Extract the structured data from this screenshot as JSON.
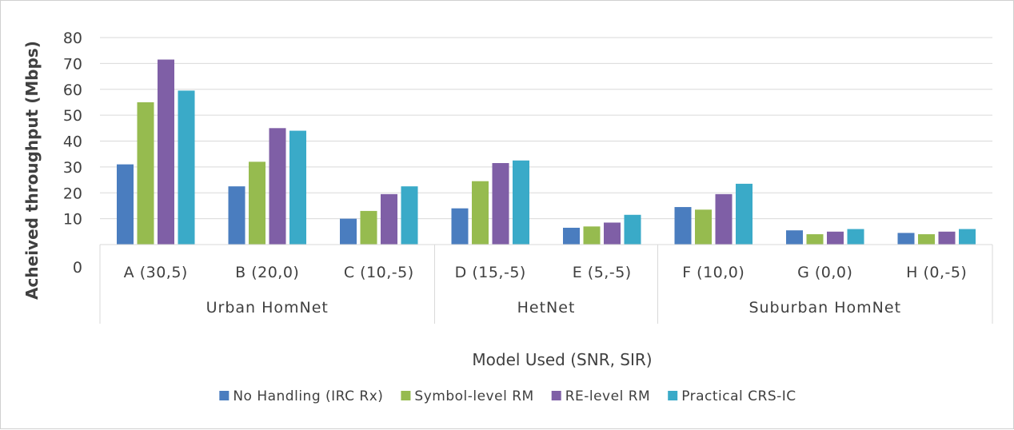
{
  "chart_data": {
    "type": "bar",
    "title": "",
    "xlabel": "Model Used (SNR, SIR)",
    "ylabel": "Acheived throughput (Mbps)",
    "ylim": [
      0,
      80
    ],
    "yticks": [
      0,
      10,
      20,
      30,
      40,
      50,
      60,
      70,
      80
    ],
    "grid": true,
    "legend_position": "bottom",
    "categories": [
      "A (30,5)",
      "B (20,0)",
      "C (10,-5)",
      "D (15,-5)",
      "E (5,-5)",
      "F (10,0)",
      "G (0,0)",
      "H (0,-5)"
    ],
    "groups": [
      {
        "label": "Urban HomNet",
        "categories": [
          "A (30,5)",
          "B (20,0)",
          "C (10,-5)"
        ]
      },
      {
        "label": "HetNet",
        "categories": [
          "D (15,-5)",
          "E (5,-5)"
        ]
      },
      {
        "label": "Suburban HomNet",
        "categories": [
          "F (10,0)",
          "G (0,0)",
          "H (0,-5)"
        ]
      }
    ],
    "series": [
      {
        "name": "No Handling (IRC Rx)",
        "color": "#4a7dbf",
        "values": [
          31,
          22.5,
          10,
          14,
          6.5,
          14.5,
          5.5,
          4.5
        ]
      },
      {
        "name": "Symbol-level RM",
        "color": "#96bb4f",
        "values": [
          55,
          32,
          13,
          24.5,
          7,
          13.5,
          4,
          4
        ]
      },
      {
        "name": "RE-level RM",
        "color": "#7f5fa6",
        "values": [
          71.5,
          45,
          19.5,
          31.5,
          8.5,
          19.5,
          5,
          5
        ]
      },
      {
        "name": "Practical CRS-IC",
        "color": "#3aaac8",
        "values": [
          59.5,
          44,
          22.5,
          32.5,
          11.5,
          23.5,
          6,
          6
        ]
      }
    ]
  }
}
